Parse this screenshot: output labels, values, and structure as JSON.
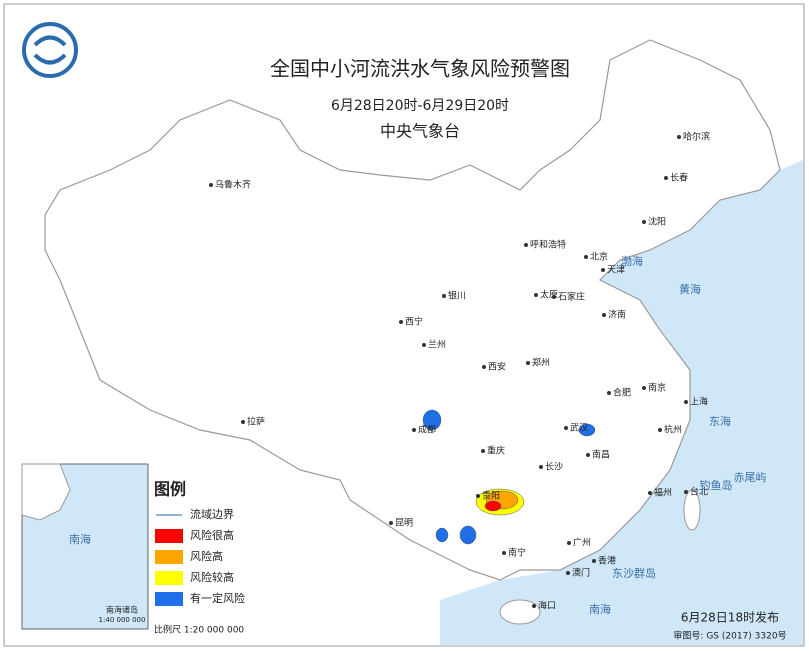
{
  "header": {
    "title": "全国中小河流洪水气象风险预警图",
    "period": "6月28日20时-6月29日20时",
    "issuer": "中央气象台"
  },
  "legend": {
    "title": "图例",
    "items": [
      {
        "label": "流域边界",
        "color": "#8fb3d0"
      },
      {
        "label": "风险很高",
        "color": "#ff0000"
      },
      {
        "label": "风险高",
        "color": "#ffa500"
      },
      {
        "label": "风险较高",
        "color": "#ffff00"
      },
      {
        "label": "有一定风险",
        "color": "#1e6fe8"
      }
    ]
  },
  "cities": [
    "乌鲁木齐",
    "哈尔滨",
    "长春",
    "沈阳",
    "呼和浩特",
    "北京",
    "天津",
    "石家庄",
    "太原",
    "济南",
    "银川",
    "西宁",
    "兰州",
    "郑州",
    "西安",
    "合肥",
    "南京",
    "上海",
    "成都",
    "武汉",
    "杭州",
    "重庆",
    "长沙",
    "南昌",
    "福州",
    "台北",
    "贵阳",
    "昆明",
    "南宁",
    "广州",
    "香港",
    "澳门",
    "海口",
    "拉萨"
  ],
  "seas": [
    "渤海",
    "黄海",
    "东海",
    "南海",
    "东沙群岛",
    "钓鱼岛",
    "赤尾屿"
  ],
  "inset": {
    "title": "南海诸岛",
    "scale": "1:40 000 000",
    "sea": "南海"
  },
  "scale_text": "比例尺  1:20 000 000",
  "footer": {
    "issued": "6月28日18时发布",
    "approval": "审图号: GS (2017) 3320号"
  }
}
